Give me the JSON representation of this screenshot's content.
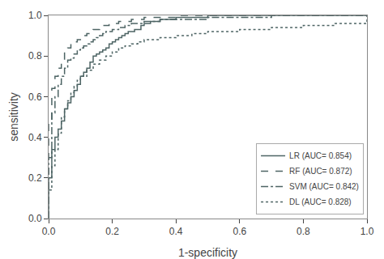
{
  "chart_data": {
    "type": "step",
    "xlabel": "1-specificity",
    "ylabel": "sensitivity",
    "xlim": [
      0.0,
      1.0
    ],
    "ylim": [
      0.0,
      1.0
    ],
    "xticks": [
      {
        "value": 0.0,
        "label": "0.0"
      },
      0.2,
      0.4,
      0.6,
      0.8,
      {
        "value": 1.0,
        "label": "1.0"
      }
    ],
    "yticks": [
      {
        "value": 0.0,
        "label": "0.0"
      },
      0.2,
      0.4,
      0.6,
      0.8,
      {
        "value": 1.0,
        "label": "1.0"
      }
    ],
    "grid": false,
    "legend": "lower right",
    "series": [
      {
        "name": "LR (AUC= 0.854)",
        "color": "#4d6464",
        "line_style": "solid",
        "x": [
          0.0,
          0.0,
          0.0,
          0.0,
          0.0,
          0.0,
          0.01,
          0.01,
          0.01,
          0.01,
          0.02,
          0.02,
          0.02,
          0.03,
          0.03,
          0.04,
          0.04,
          0.05,
          0.05,
          0.05,
          0.06,
          0.06,
          0.07,
          0.07,
          0.08,
          0.08,
          0.09,
          0.09,
          0.1,
          0.1,
          0.11,
          0.11,
          0.12,
          0.13,
          0.13,
          0.14,
          0.14,
          0.15,
          0.16,
          0.17,
          0.18,
          0.19,
          0.2,
          0.21,
          0.22,
          0.23,
          0.24,
          0.25,
          0.27,
          0.29,
          0.3,
          0.32,
          0.35,
          0.4,
          0.5,
          0.6,
          0.7,
          0.8,
          1.0
        ],
        "values": [
          0.0,
          0.04,
          0.08,
          0.12,
          0.16,
          0.2,
          0.22,
          0.26,
          0.3,
          0.34,
          0.36,
          0.38,
          0.4,
          0.42,
          0.44,
          0.46,
          0.48,
          0.5,
          0.52,
          0.54,
          0.55,
          0.57,
          0.58,
          0.6,
          0.62,
          0.63,
          0.65,
          0.66,
          0.68,
          0.7,
          0.71,
          0.72,
          0.74,
          0.76,
          0.77,
          0.78,
          0.8,
          0.81,
          0.82,
          0.83,
          0.84,
          0.86,
          0.87,
          0.88,
          0.89,
          0.9,
          0.91,
          0.92,
          0.93,
          0.95,
          0.96,
          0.97,
          0.98,
          0.99,
          1.0,
          1.0,
          1.0,
          1.0,
          1.0
        ]
      },
      {
        "name": "RF (AUC= 0.872)",
        "color": "#4d6464",
        "line_style": "dashed",
        "x": [
          0.0,
          0.0,
          0.0,
          0.0,
          0.01,
          0.01,
          0.01,
          0.02,
          0.02,
          0.03,
          0.03,
          0.04,
          0.04,
          0.05,
          0.05,
          0.06,
          0.07,
          0.07,
          0.08,
          0.09,
          0.1,
          0.11,
          0.12,
          0.13,
          0.14,
          0.15,
          0.16,
          0.17,
          0.18,
          0.19,
          0.2,
          0.22,
          0.24,
          0.26,
          0.28,
          0.3,
          0.35,
          0.4,
          0.5,
          0.6,
          0.7,
          0.8,
          1.0
        ],
        "values": [
          0.0,
          0.06,
          0.2,
          0.48,
          0.54,
          0.6,
          0.64,
          0.67,
          0.7,
          0.72,
          0.74,
          0.76,
          0.78,
          0.8,
          0.82,
          0.84,
          0.85,
          0.86,
          0.87,
          0.88,
          0.89,
          0.9,
          0.91,
          0.92,
          0.93,
          0.93,
          0.94,
          0.95,
          0.95,
          0.96,
          0.96,
          0.97,
          0.97,
          0.98,
          0.98,
          0.99,
          0.99,
          1.0,
          1.0,
          1.0,
          1.0,
          1.0,
          1.0
        ]
      },
      {
        "name": "SVM (AUC= 0.842)",
        "color": "#4d6464",
        "line_style": "dashdot",
        "x": [
          0.0,
          0.0,
          0.0,
          0.0,
          0.01,
          0.01,
          0.01,
          0.02,
          0.02,
          0.03,
          0.03,
          0.04,
          0.04,
          0.05,
          0.05,
          0.06,
          0.06,
          0.07,
          0.08,
          0.09,
          0.1,
          0.11,
          0.12,
          0.13,
          0.14,
          0.15,
          0.16,
          0.17,
          0.18,
          0.2,
          0.22,
          0.24,
          0.26,
          0.28,
          0.3,
          0.35,
          0.4,
          0.5,
          0.6,
          0.7,
          0.8,
          1.0
        ],
        "values": [
          0.0,
          0.04,
          0.12,
          0.3,
          0.4,
          0.46,
          0.52,
          0.56,
          0.6,
          0.63,
          0.66,
          0.68,
          0.7,
          0.72,
          0.74,
          0.76,
          0.78,
          0.79,
          0.81,
          0.83,
          0.84,
          0.85,
          0.86,
          0.87,
          0.88,
          0.89,
          0.9,
          0.91,
          0.92,
          0.93,
          0.94,
          0.95,
          0.96,
          0.96,
          0.97,
          0.98,
          0.98,
          0.99,
          0.99,
          1.0,
          1.0,
          1.0
        ]
      },
      {
        "name": "DL (AUC= 0.828)",
        "color": "#4d6464",
        "line_style": "dotted",
        "x": [
          0.0,
          0.0,
          0.0,
          0.0,
          0.0,
          0.01,
          0.01,
          0.01,
          0.02,
          0.02,
          0.03,
          0.03,
          0.04,
          0.04,
          0.05,
          0.06,
          0.07,
          0.08,
          0.09,
          0.1,
          0.12,
          0.14,
          0.16,
          0.18,
          0.2,
          0.22,
          0.24,
          0.26,
          0.28,
          0.3,
          0.35,
          0.4,
          0.45,
          0.5,
          0.55,
          0.6,
          0.65,
          0.7,
          0.75,
          0.8,
          0.85,
          0.9,
          1.0
        ],
        "values": [
          0.0,
          0.03,
          0.06,
          0.1,
          0.14,
          0.18,
          0.22,
          0.26,
          0.3,
          0.34,
          0.38,
          0.42,
          0.46,
          0.5,
          0.54,
          0.58,
          0.62,
          0.65,
          0.68,
          0.7,
          0.73,
          0.76,
          0.78,
          0.8,
          0.82,
          0.84,
          0.85,
          0.86,
          0.87,
          0.88,
          0.89,
          0.9,
          0.91,
          0.92,
          0.92,
          0.93,
          0.93,
          0.94,
          0.94,
          0.95,
          0.95,
          0.96,
          1.0
        ]
      }
    ]
  }
}
